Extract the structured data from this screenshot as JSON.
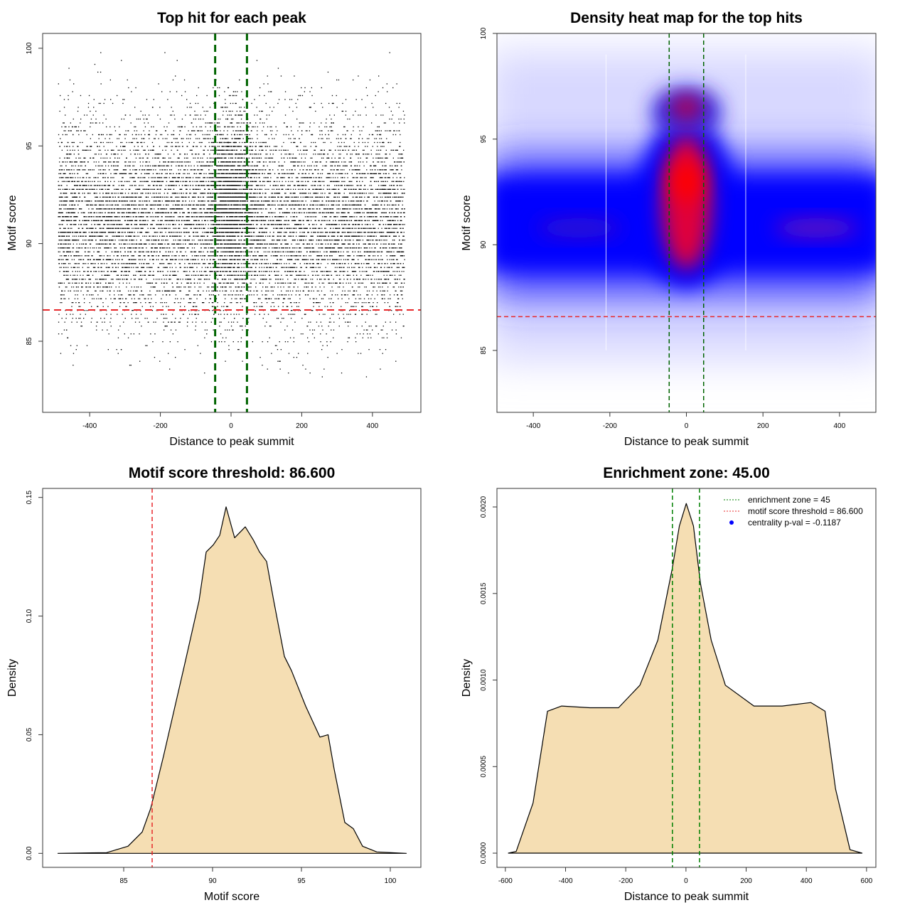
{
  "chart_data": [
    {
      "type": "scatter",
      "title": "Top hit for each peak",
      "xlabel": "Distance to peak summit",
      "ylabel": "Motif score",
      "xlim": [
        -533,
        537
      ],
      "ylim": [
        81.36,
        100.76
      ],
      "xticks": [
        -400,
        -200,
        0,
        200,
        400
      ],
      "yticks": [
        85,
        90,
        95,
        100
      ],
      "points_generated": {
        "n": 11000,
        "x_range": [
          -490,
          490
        ],
        "y_mean": 91.2,
        "y_sd": 2.6,
        "y_range": [
          83.2,
          100
        ],
        "central_extra": 1800,
        "central_sd": 35
      },
      "vlines": [
        -45,
        45
      ],
      "hline": 86.6,
      "vline_color": "#006400",
      "hline_color": "#e8282b"
    },
    {
      "type": "heatmap",
      "title": "Density heat map for the top hits",
      "xlabel": "Distance to peak summit",
      "ylabel": "Motif score",
      "xlim": [
        -495,
        495
      ],
      "ylim": [
        82.07,
        100
      ],
      "xticks": [
        -400,
        -200,
        0,
        200,
        400
      ],
      "yticks": [
        85,
        90,
        95,
        100
      ],
      "vlines": [
        -45,
        45
      ],
      "hline": 86.6,
      "colors": [
        "#ffffff",
        "#0000ff",
        "#ff0000"
      ]
    },
    {
      "type": "area",
      "title": "Motif score threshold: 86.600",
      "xlabel": "Motif score",
      "ylabel": "Density",
      "xlim": [
        80.44,
        101.72
      ],
      "ylim": [
        -0.0059,
        0.1538
      ],
      "xticks": [
        85,
        90,
        95,
        100
      ],
      "yticks": [
        0.0,
        0.05,
        0.1,
        0.15
      ],
      "ytick_labels": [
        "0.00",
        "0.05",
        "0.10",
        "0.15"
      ],
      "x": [
        81.3,
        84.04,
        85.24,
        86.04,
        86.52,
        87.24,
        88.44,
        89.24,
        89.64,
        90.04,
        90.4,
        90.76,
        91.24,
        91.84,
        92.3,
        92.64,
        93.04,
        93.44,
        94.04,
        94.44,
        95.24,
        96.04,
        96.5,
        96.84,
        97.44,
        97.92,
        98.44,
        99.24,
        100.9
      ],
      "y": [
        0,
        0.0003,
        0.003,
        0.009,
        0.019,
        0.041,
        0.08,
        0.1065,
        0.127,
        0.13,
        0.134,
        0.146,
        0.133,
        0.1376,
        0.132,
        0.127,
        0.123,
        0.1065,
        0.083,
        0.077,
        0.062,
        0.049,
        0.05,
        0.0355,
        0.013,
        0.0104,
        0.003,
        0.0006,
        0
      ],
      "fill": "#f5deb3",
      "vline": 86.6,
      "vline_color": "#e8282b"
    },
    {
      "type": "area",
      "title": "Enrichment zone: 45.00",
      "xlabel": "Distance to peak summit",
      "ylabel": "Density",
      "xlim": [
        -628,
        631
      ],
      "ylim": [
        -8.2e-05,
        0.002107
      ],
      "xticks": [
        -600,
        -400,
        -200,
        0,
        200,
        400,
        600
      ],
      "yticks": [
        0,
        0.0005,
        0.001,
        0.0015,
        0.002
      ],
      "ytick_labels": [
        "0.0000",
        "0.0005",
        "0.0010",
        "0.0015",
        "0.0020"
      ],
      "x": [
        -590,
        -564,
        -508,
        -460,
        -413,
        -319,
        -224,
        -153,
        -93.5,
        -46,
        -22,
        1,
        25,
        48,
        84,
        131,
        226,
        320,
        415,
        462,
        497,
        545,
        585
      ],
      "y": [
        0,
        1e-05,
        0.00029,
        0.00082,
        0.00085,
        0.00084,
        0.00084,
        0.00097,
        0.00123,
        0.00164,
        0.00189,
        0.00202,
        0.00189,
        0.00156,
        0.00123,
        0.00097,
        0.00085,
        0.00085,
        0.00087,
        0.00082,
        0.00037,
        2e-05,
        0
      ],
      "fill": "#f5deb3",
      "vlines": [
        -45,
        45
      ],
      "vline_color": "#008000",
      "legend": {
        "placement": "top-right",
        "entries": [
          {
            "label": "enrichment zone = 45",
            "color": "#008000",
            "kind": "dotted-line"
          },
          {
            "label": "motif score threshold = 86.600",
            "color": "#e8282b",
            "kind": "dotted-line"
          },
          {
            "label": "centrality p-val = -0.1187",
            "color": "#0000ff",
            "kind": "point"
          }
        ]
      }
    }
  ]
}
